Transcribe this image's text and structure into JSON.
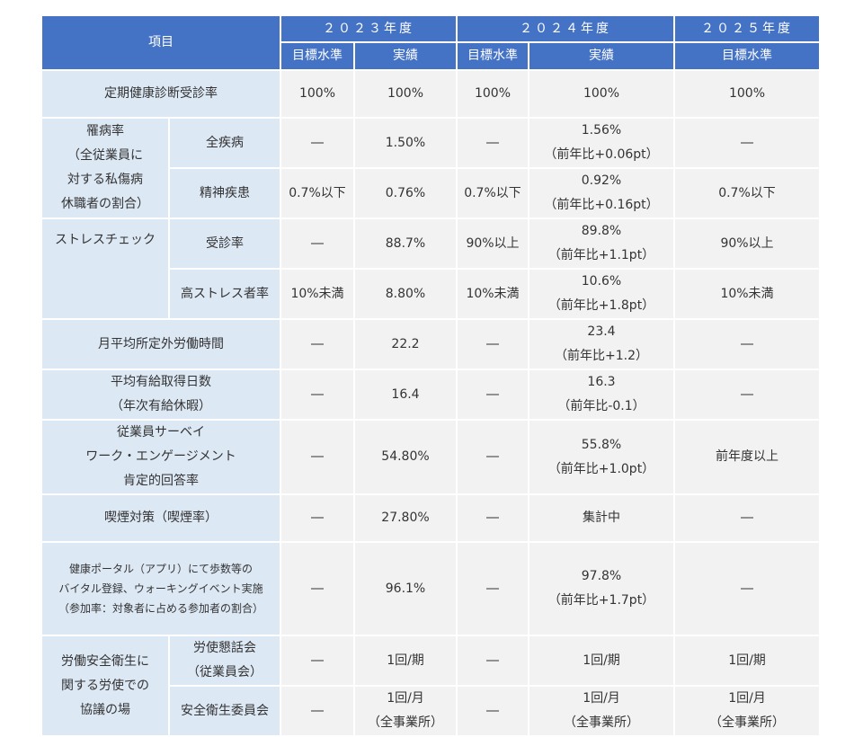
{
  "header": {
    "item": "項目",
    "years": [
      "２０２３年度",
      "２０２４年度",
      "２０２５年度"
    ],
    "target": "目標水準",
    "actual": "実績"
  },
  "rows": {
    "checkup": {
      "label": "定期健康診断受診率",
      "v": [
        "100%",
        "100%",
        "100%",
        "100%",
        "100%"
      ]
    },
    "morbidity": {
      "label": [
        "罹病率",
        "（全従業員に",
        "対する私傷病",
        "休職者の割合）"
      ],
      "all": {
        "label": "全疾病",
        "v": [
          "―",
          "1.50%",
          "―",
          "1.56%",
          "（前年比+0.06pt）",
          "―"
        ]
      },
      "mental": {
        "label": "精神疾患",
        "v": [
          "0.7%以下",
          "0.76%",
          "0.7%以下",
          "0.92%",
          "（前年比+0.16pt）",
          "0.7%以下"
        ]
      }
    },
    "stress": {
      "label": "ストレスチェック",
      "rate": {
        "label": "受診率",
        "v": [
          "―",
          "88.7%",
          "90%以上",
          "89.8%",
          "（前年比+1.1pt）",
          "90%以上"
        ]
      },
      "high": {
        "label": "高ストレス者率",
        "v": [
          "10%未満",
          "8.80%",
          "10%未満",
          "10.6%",
          "（前年比+1.8pt）",
          "10%未満"
        ]
      }
    },
    "overtime": {
      "label": "月平均所定外労働時間",
      "v": [
        "―",
        "22.2",
        "―",
        "23.4",
        "（前年比+1.2）",
        "―"
      ]
    },
    "leave": {
      "label": [
        "平均有給取得日数",
        "（年次有給休暇）"
      ],
      "v": [
        "―",
        "16.4",
        "―",
        "16.3",
        "（前年比-0.1）",
        "―"
      ]
    },
    "engagement": {
      "label": [
        "従業員サーベイ",
        "ワーク・エンゲージメント",
        "肯定的回答率"
      ],
      "v": [
        "―",
        "54.80%",
        "―",
        "55.8%",
        "（前年比+1.0pt）",
        "前年度以上"
      ]
    },
    "smoking": {
      "label": "喫煙対策（喫煙率）",
      "v": [
        "―",
        "27.80%",
        "―",
        "集計中",
        "―"
      ]
    },
    "portal": {
      "label": [
        "健康ポータル（アプリ）にて歩数等の",
        "バイタル登録、ウォーキングイベント実施",
        "（参加率：対象者に占める参加者の割合）"
      ],
      "v": [
        "―",
        "96.1%",
        "―",
        "97.8%",
        "（前年比+1.7pt）",
        "―"
      ]
    },
    "safety": {
      "label": [
        "労働安全衛生に",
        "関する労使での",
        "協議の場"
      ],
      "council": {
        "label": [
          "労使懇話会",
          "（従業員会）"
        ],
        "v": [
          "―",
          "1回/期",
          "―",
          "1回/期",
          "1回/期"
        ]
      },
      "committee": {
        "label": "安全衛生委員会",
        "v": [
          "―",
          "1回/月",
          "（全事業所）",
          "―",
          "1回/月",
          "（全事業所）",
          "1回/月",
          "（全事業所）"
        ]
      }
    }
  }
}
